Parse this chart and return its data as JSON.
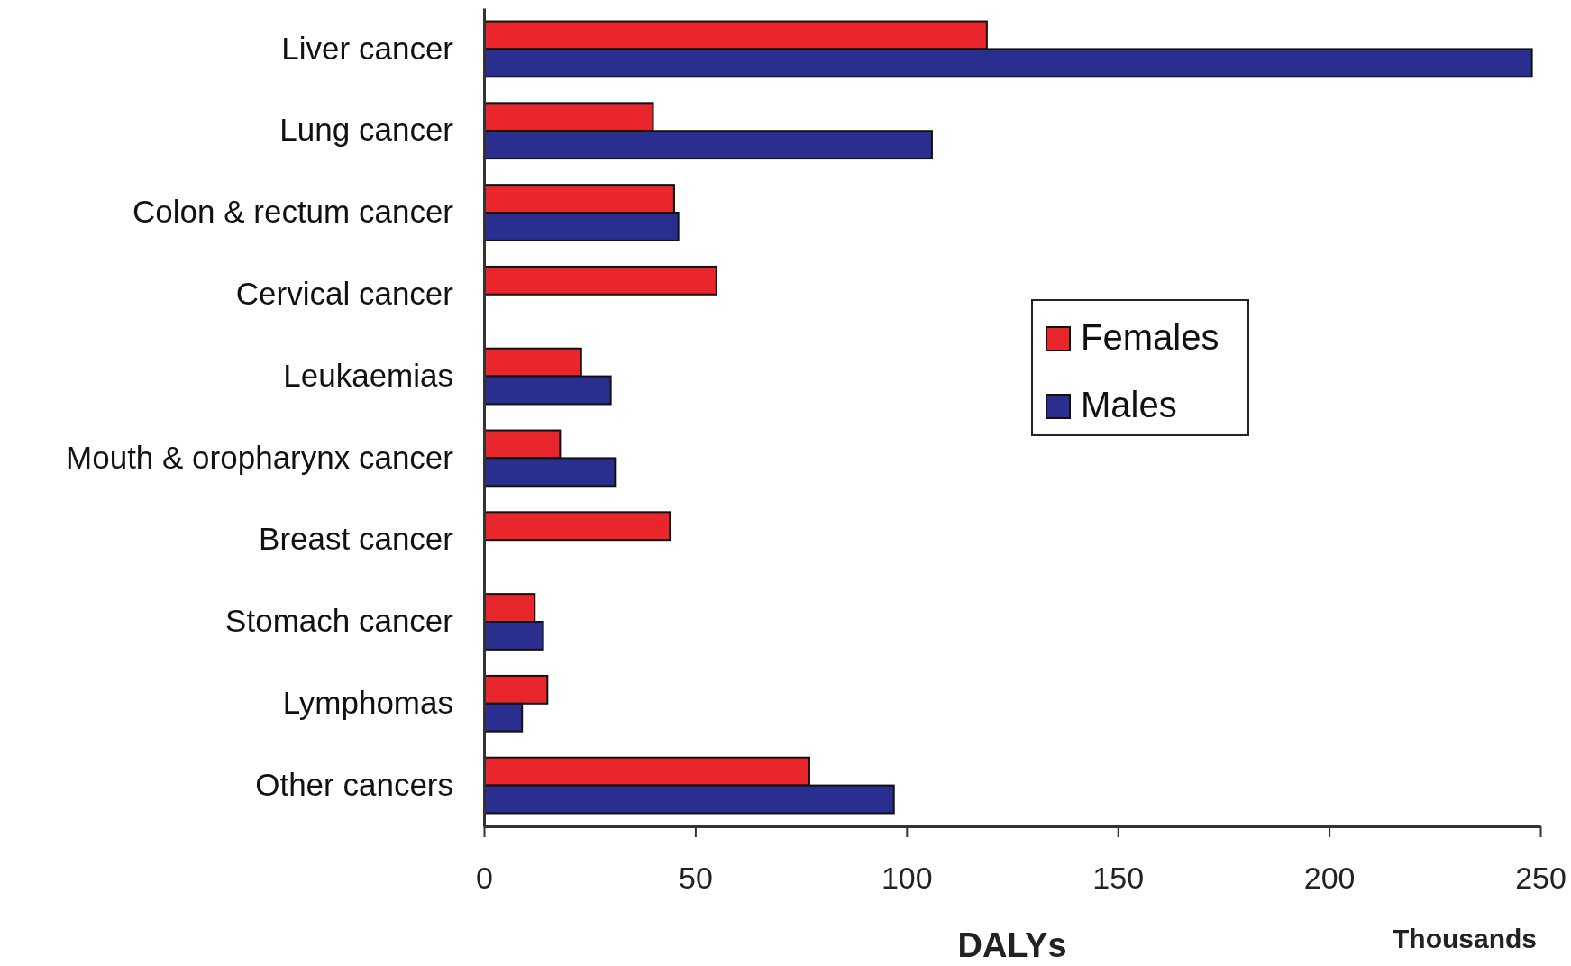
{
  "chart_data": {
    "type": "bar",
    "orientation": "horizontal",
    "xlabel": "DALYs",
    "annotations": [
      "Thousands"
    ],
    "categories": [
      "Liver cancer",
      "Lung cancer",
      "Colon & rectum cancer",
      "Cervical cancer",
      "Leukaemias",
      "Mouth & oropharynx cancer",
      "Breast cancer",
      "Stomach cancer",
      "Lymphomas",
      "Other cancers"
    ],
    "series": [
      {
        "name": "Females",
        "color": "#e8262b",
        "values": [
          119,
          40,
          45,
          55,
          23,
          18,
          44,
          12,
          15,
          77
        ]
      },
      {
        "name": "Males",
        "color": "#2a2f8f",
        "values": [
          248,
          106,
          46,
          null,
          30,
          31,
          null,
          14,
          9,
          97
        ]
      }
    ],
    "xlim": [
      0,
      250
    ],
    "xticks": [
      0,
      50,
      100,
      150,
      200,
      250
    ],
    "legend": "right",
    "grid": false
  }
}
